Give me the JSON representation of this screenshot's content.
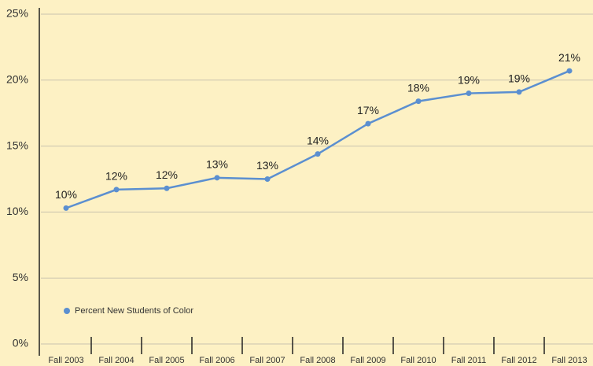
{
  "chart_data": {
    "type": "line",
    "categories": [
      "Fall 2003",
      "Fall 2004",
      "Fall 2005",
      "Fall 2006",
      "Fall 2007",
      "Fall 2008",
      "Fall 2009",
      "Fall 2010",
      "Fall 2011",
      "Fall 2012",
      "Fall 2013"
    ],
    "series": [
      {
        "name": "Percent New Students of Color",
        "color": "#5b8fd0",
        "values": [
          10.3,
          11.7,
          11.8,
          12.6,
          12.5,
          14.4,
          16.7,
          18.4,
          19.0,
          19.1,
          20.7
        ],
        "value_labels": [
          "10%",
          "12%",
          "12%",
          "13%",
          "13%",
          "14%",
          "17%",
          "18%",
          "19%",
          "19%",
          "21%"
        ]
      }
    ],
    "ylim": [
      0,
      25
    ],
    "yticks": [
      {
        "value": 0,
        "label": "0%"
      },
      {
        "value": 5,
        "label": "5%"
      },
      {
        "value": 10,
        "label": "10%"
      },
      {
        "value": 15,
        "label": "15%"
      },
      {
        "value": 20,
        "label": "20%"
      },
      {
        "value": 25,
        "label": "25%"
      }
    ],
    "grid": true,
    "legend": "lower left"
  }
}
